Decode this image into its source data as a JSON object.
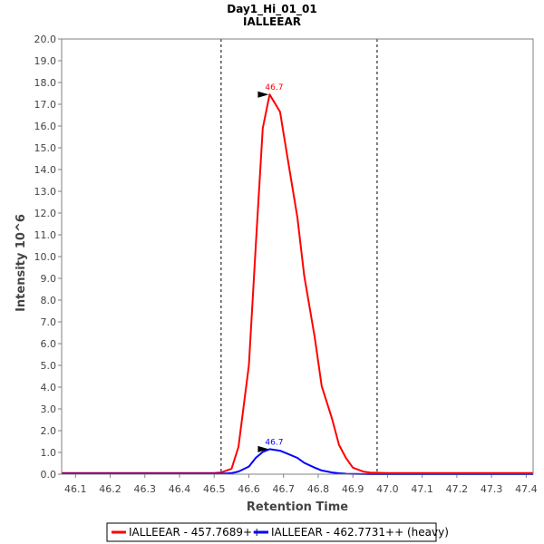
{
  "chart_data": {
    "type": "line",
    "title": "Day1_Hi_01_01",
    "subtitle": "IALLEEAR",
    "xlabel": "Retention Time",
    "ylabel": "Intensity 10^6",
    "xlim": [
      46.06,
      47.42
    ],
    "ylim": [
      0,
      20.0
    ],
    "xticks": [
      46.1,
      46.2,
      46.3,
      46.4,
      46.5,
      46.6,
      46.7,
      46.8,
      46.9,
      47.0,
      47.1,
      47.2,
      47.3,
      47.4
    ],
    "xtick_labels": [
      "46.1",
      "46.2",
      "46.3",
      "46.4",
      "46.5",
      "46.6",
      "46.7",
      "46.8",
      "46.9",
      "47.0",
      "47.1",
      "47.2",
      "47.3",
      "47.4"
    ],
    "yticks": [
      0,
      1,
      2,
      3,
      4,
      5,
      6,
      7,
      8,
      9,
      10,
      11,
      12,
      13,
      14,
      15,
      16,
      17,
      18,
      19,
      20
    ],
    "ytick_labels": [
      "0.0",
      "1.0",
      "2.0",
      "3.0",
      "4.0",
      "5.0",
      "6.0",
      "7.0",
      "8.0",
      "9.0",
      "10.0",
      "11.0",
      "12.0",
      "13.0",
      "14.0",
      "15.0",
      "16.0",
      "17.0",
      "18.0",
      "19.0",
      "20.0"
    ],
    "boundaries": [
      46.52,
      46.97
    ],
    "series": [
      {
        "name": "IALLEEAR - 457.7689++",
        "color": "#ff0000",
        "peak_label": "46.7",
        "peak_x": 46.66,
        "peak_y": 17.45,
        "x": [
          46.06,
          46.5,
          46.52,
          46.55,
          46.57,
          46.6,
          46.62,
          46.64,
          46.66,
          46.69,
          46.71,
          46.74,
          46.76,
          46.79,
          46.81,
          46.84,
          46.86,
          46.88,
          46.9,
          46.93,
          46.95,
          47.0,
          47.42
        ],
        "y": [
          0.05,
          0.05,
          0.08,
          0.25,
          1.25,
          5.0,
          10.5,
          15.9,
          17.45,
          16.65,
          14.7,
          11.8,
          9.1,
          6.3,
          4.05,
          2.55,
          1.35,
          0.75,
          0.3,
          0.12,
          0.07,
          0.05,
          0.05
        ]
      },
      {
        "name": "IALLEEAR - 462.7731++ (heavy)",
        "color": "#0000ff",
        "peak_label": "46.7",
        "peak_x": 46.66,
        "peak_y": 1.15,
        "x": [
          46.06,
          46.52,
          46.55,
          46.57,
          46.6,
          46.62,
          46.64,
          46.66,
          46.69,
          46.71,
          46.74,
          46.76,
          46.79,
          46.81,
          46.84,
          46.86,
          46.88,
          46.91,
          46.95,
          47.0,
          47.42
        ],
        "y": [
          0.02,
          0.02,
          0.05,
          0.12,
          0.35,
          0.75,
          1.02,
          1.15,
          1.08,
          0.95,
          0.75,
          0.52,
          0.3,
          0.17,
          0.08,
          0.04,
          0.02,
          0.01,
          0.0,
          0.0,
          0.0
        ]
      }
    ]
  }
}
